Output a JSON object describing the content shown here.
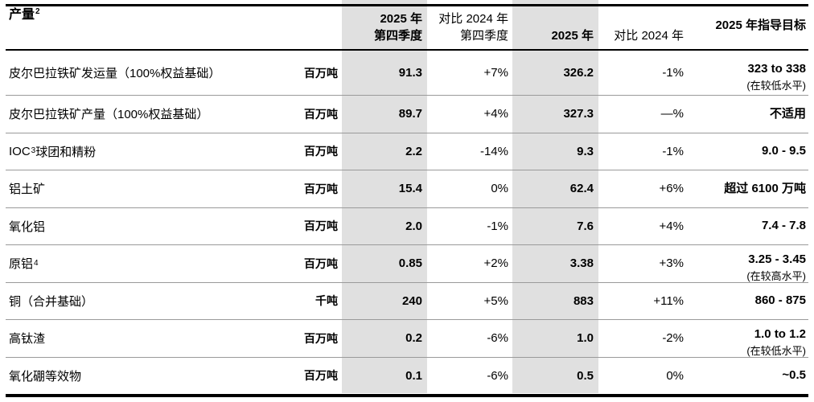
{
  "colors": {
    "band_background": "#e0e0e0",
    "row_divider": "#9a9a9a",
    "border": "#000000",
    "text": "#000000"
  },
  "header": {
    "product_label": "产量",
    "product_sup": "2",
    "q4_line1": "2025 年",
    "q4_line2": "第四季度",
    "vs_q4_line1": "对比 2024 年",
    "vs_q4_line2": "第四季度",
    "fy_label": "2025 年",
    "vs_fy_label": "对比 2024 年",
    "guidance_label": "2025 年指导目标"
  },
  "rows": [
    {
      "label_pre": "皮尔巴拉铁矿发运量（100%权益基础）",
      "label_sup": "",
      "label_post": "",
      "unit": "百万吨",
      "q4_2025": "91.3",
      "vs_q4_2024": "+7%",
      "fy_2025": "326.2",
      "vs_fy_2024": "-1%",
      "guidance": "323 to 338",
      "guidance_note": "(在较低水平)"
    },
    {
      "label_pre": "皮尔巴拉铁矿产量（100%权益基础）",
      "label_sup": "",
      "label_post": "",
      "unit": "百万吨",
      "q4_2025": "89.7",
      "vs_q4_2024": "+4%",
      "fy_2025": "327.3",
      "vs_fy_2024": "—%",
      "guidance": "不适用",
      "guidance_note": ""
    },
    {
      "label_pre": "IOC",
      "label_sup": "3",
      "label_post": " 球团和精粉",
      "unit": "百万吨",
      "q4_2025": "2.2",
      "vs_q4_2024": "-14%",
      "fy_2025": "9.3",
      "vs_fy_2024": "-1%",
      "guidance": "9.0 - 9.5",
      "guidance_note": ""
    },
    {
      "label_pre": "铝土矿",
      "label_sup": "",
      "label_post": "",
      "unit": "百万吨",
      "q4_2025": "15.4",
      "vs_q4_2024": "0%",
      "fy_2025": "62.4",
      "vs_fy_2024": "+6%",
      "guidance": "超过 6100 万吨",
      "guidance_note": ""
    },
    {
      "label_pre": "氧化铝",
      "label_sup": "",
      "label_post": "",
      "unit": "百万吨",
      "q4_2025": "2.0",
      "vs_q4_2024": "-1%",
      "fy_2025": "7.6",
      "vs_fy_2024": "+4%",
      "guidance": "7.4 - 7.8",
      "guidance_note": ""
    },
    {
      "label_pre": "原铝 ",
      "label_sup": "4",
      "label_post": "",
      "unit": "百万吨",
      "q4_2025": "0.85",
      "vs_q4_2024": "+2%",
      "fy_2025": "3.38",
      "vs_fy_2024": "+3%",
      "guidance": "3.25 - 3.45",
      "guidance_note": "(在较高水平)"
    },
    {
      "label_pre": "铜（合并基础）",
      "label_sup": "",
      "label_post": "",
      "unit": "千吨",
      "q4_2025": "240",
      "vs_q4_2024": "+5%",
      "fy_2025": "883",
      "vs_fy_2024": "+11%",
      "guidance": "860 - 875",
      "guidance_note": ""
    },
    {
      "label_pre": "高钛渣",
      "label_sup": "",
      "label_post": "",
      "unit": "百万吨",
      "q4_2025": "0.2",
      "vs_q4_2024": "-6%",
      "fy_2025": "1.0",
      "vs_fy_2024": "-2%",
      "guidance": "1.0 to 1.2",
      "guidance_note": "(在较低水平)"
    },
    {
      "label_pre": "氧化硼等效物",
      "label_sup": "",
      "label_post": "",
      "unit": "百万吨",
      "q4_2025": "0.1",
      "vs_q4_2024": "-6%",
      "fy_2025": "0.5",
      "vs_fy_2024": "0%",
      "guidance": "~0.5",
      "guidance_note": ""
    }
  ]
}
